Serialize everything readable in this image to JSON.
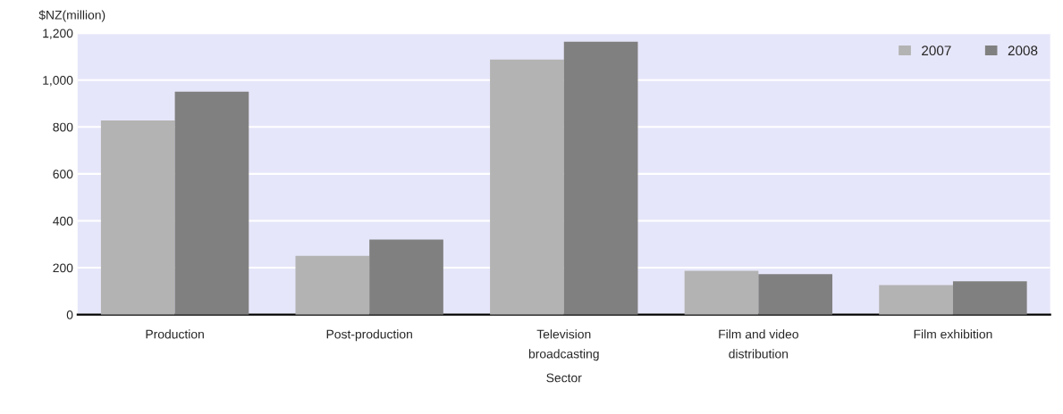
{
  "chart_data": {
    "type": "bar",
    "ylabel": "$NZ(million)",
    "xlabel": "Sector",
    "categories": [
      "Production",
      "Post-production",
      "Television\nbroadcasting",
      "Film and video\ndistribution",
      "Film exhibition"
    ],
    "series": [
      {
        "name": "2007",
        "color": "#b3b3b3",
        "values": [
          828,
          251,
          1087,
          187,
          126
        ]
      },
      {
        "name": "2008",
        "color": "#808080",
        "values": [
          950,
          320,
          1163,
          173,
          142
        ]
      }
    ],
    "ylim": [
      0,
      1200
    ],
    "yticks": [
      0,
      {
        "value": 200,
        "label": "200"
      },
      {
        "value": 400,
        "label": "400"
      },
      {
        "value": 600,
        "label": "600"
      },
      {
        "value": 800,
        "label": "800"
      },
      {
        "value": 1000,
        "label": "1,000"
      },
      {
        "value": 1200,
        "label": "1,200"
      }
    ],
    "grid": "y",
    "legend": "top right"
  }
}
